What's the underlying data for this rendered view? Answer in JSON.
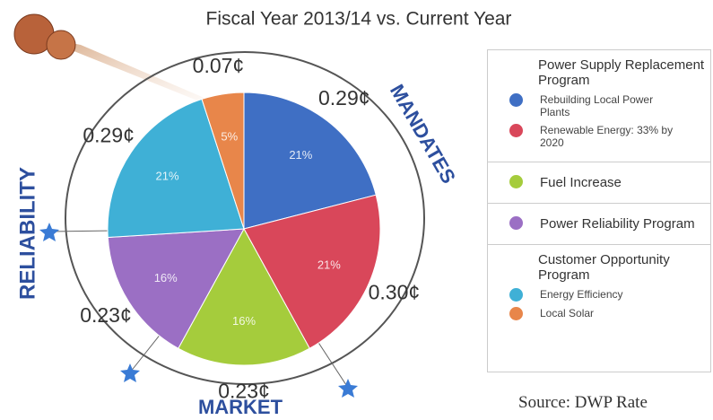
{
  "chart_data": {
    "type": "pie",
    "title": "Fiscal Year 2013/14 vs. Current Year",
    "ring_labels": [
      "MANDATES",
      "MARKET",
      "RELIABILITY"
    ],
    "source": "Source:  DWP Rate",
    "groups": [
      {
        "title": "Power Supply Replacement Program",
        "items": [
          {
            "name": "Rebuilding Local Power Plants",
            "color": "#3f6fc4",
            "value": 21,
            "value_label": "21%",
            "cost_label": "0.29¢"
          },
          {
            "name": "Renewable Energy: 33% by 2020",
            "color": "#d9475a",
            "value": 21,
            "value_label": "21%",
            "cost_label": "0.30¢"
          }
        ]
      },
      {
        "items": [
          {
            "name": "Fuel Increase",
            "color": "#a5cc3c",
            "value": 16,
            "value_label": "16%",
            "cost_label": "0.23¢"
          }
        ]
      },
      {
        "items": [
          {
            "name": "Power Reliability Program",
            "color": "#9b6fc4",
            "value": 16,
            "value_label": "16%",
            "cost_label": "0.23¢"
          }
        ]
      },
      {
        "title": "Customer Opportunity Program",
        "items": [
          {
            "name": "Energy Efficiency",
            "color": "#3fb0d6",
            "value": 21,
            "value_label": "21%",
            "cost_label": "0.29¢"
          },
          {
            "name": "Local Solar",
            "color": "#e8864a",
            "value": 5,
            "value_label": "5%",
            "cost_label": "0.07¢"
          }
        ]
      }
    ]
  }
}
